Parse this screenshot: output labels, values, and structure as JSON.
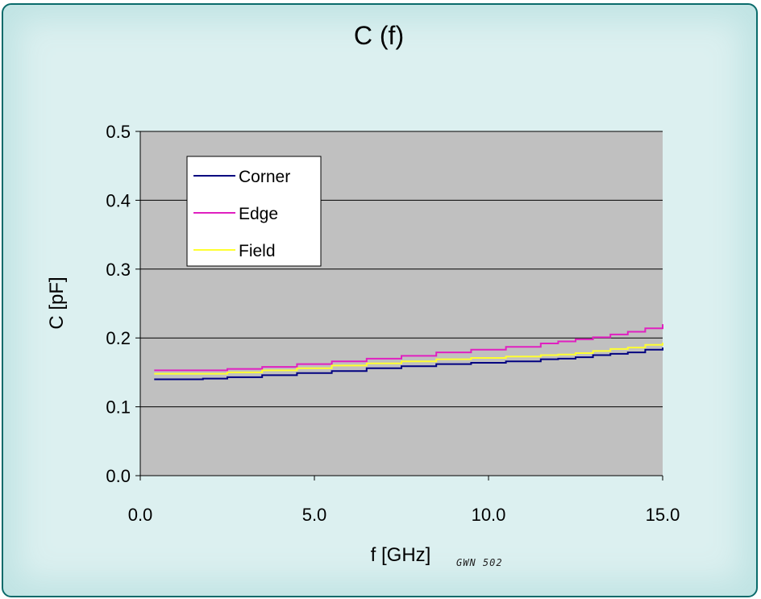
{
  "chart_data": {
    "type": "line",
    "title": "C (f)",
    "xlabel": "f [GHz]",
    "ylabel": "C [pF]",
    "xlim": [
      0,
      15
    ],
    "ylim": [
      0,
      0.5
    ],
    "xticks": [
      "0.0",
      "5.0",
      "10.0",
      "15.0"
    ],
    "yticks": [
      "0.0",
      "0.1",
      "0.2",
      "0.3",
      "0.4",
      "0.5"
    ],
    "grid": "horizontal",
    "legend_position": "top-left",
    "x": [
      0.4,
      1.8,
      2.5,
      3.5,
      4.5,
      5.5,
      6.5,
      7.5,
      8.5,
      9.5,
      10.5,
      11.5,
      12.0,
      12.5,
      13.0,
      13.5,
      14.0,
      14.5,
      15.0
    ],
    "series": [
      {
        "name": "Corner",
        "color": "#000080",
        "values": [
          0.14,
          0.141,
          0.143,
          0.146,
          0.149,
          0.152,
          0.156,
          0.159,
          0.162,
          0.164,
          0.166,
          0.169,
          0.17,
          0.172,
          0.175,
          0.177,
          0.179,
          0.183,
          0.186
        ]
      },
      {
        "name": "Edge",
        "color": "#e020c0",
        "values": [
          0.153,
          0.153,
          0.155,
          0.158,
          0.162,
          0.166,
          0.17,
          0.174,
          0.179,
          0.183,
          0.187,
          0.192,
          0.195,
          0.198,
          0.201,
          0.205,
          0.209,
          0.214,
          0.22
        ]
      },
      {
        "name": "Field",
        "color": "#ffff30",
        "values": [
          0.148,
          0.148,
          0.15,
          0.153,
          0.156,
          0.16,
          0.163,
          0.166,
          0.169,
          0.171,
          0.173,
          0.175,
          0.176,
          0.178,
          0.181,
          0.184,
          0.186,
          0.19,
          0.193
        ]
      }
    ]
  },
  "watermark": "GWN 502",
  "colors": {
    "plot_bg": "#c0c0c0",
    "frame_border": "#0a6b6b",
    "frame_bg": "#dcf0f0"
  }
}
